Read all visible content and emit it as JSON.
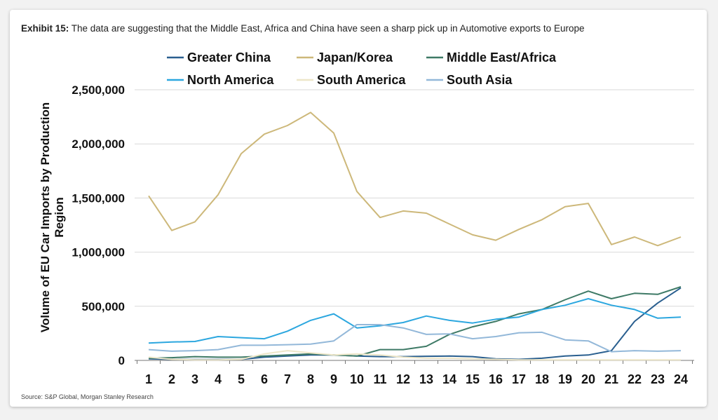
{
  "exhibit": {
    "label": "Exhibit 15:",
    "text": "The data are suggesting that the Middle East, Africa and China have seen a sharp pick up in Automotive exports to Europe"
  },
  "source": "Source: S&P Global, Morgan Stanley Research",
  "chart_data": {
    "type": "line",
    "title": "",
    "xlabel": "",
    "ylabel_lines": [
      "Volume of EU Car Imports by Production",
      "Region"
    ],
    "ylim": [
      0,
      2500000
    ],
    "yticks": [
      0,
      500000,
      1000000,
      1500000,
      2000000,
      2500000
    ],
    "ytick_labels": [
      "0",
      "500,000",
      "1,000,000",
      "1,500,000",
      "2,000,000",
      "2,500,000"
    ],
    "grid": true,
    "legend_position": "top",
    "x": [
      1,
      2,
      3,
      4,
      5,
      6,
      7,
      8,
      9,
      10,
      11,
      12,
      13,
      14,
      15,
      16,
      17,
      18,
      19,
      20,
      21,
      22,
      23,
      24
    ],
    "series": [
      {
        "name": "Greater China",
        "color": "#2a5f8f",
        "values": [
          15000,
          10000,
          8000,
          8000,
          10000,
          30000,
          40000,
          50000,
          50000,
          40000,
          35000,
          35000,
          38000,
          40000,
          35000,
          15000,
          10000,
          20000,
          40000,
          50000,
          90000,
          360000,
          530000,
          670000
        ]
      },
      {
        "name": "Japan/Korea",
        "color": "#cdb87a",
        "values": [
          1520000,
          1200000,
          1280000,
          1530000,
          1910000,
          2090000,
          2170000,
          2290000,
          2100000,
          1560000,
          1320000,
          1380000,
          1360000,
          1260000,
          1160000,
          1110000,
          1210000,
          1300000,
          1420000,
          1450000,
          1070000,
          1140000,
          1060000,
          1140000
        ]
      },
      {
        "name": "Middle East/Africa",
        "color": "#3e7a66",
        "values": [
          20000,
          25000,
          35000,
          30000,
          30000,
          40000,
          50000,
          60000,
          50000,
          40000,
          100000,
          100000,
          130000,
          240000,
          310000,
          360000,
          430000,
          470000,
          560000,
          640000,
          570000,
          620000,
          610000,
          680000
        ]
      },
      {
        "name": "North America",
        "color": "#2ca7df",
        "values": [
          160000,
          170000,
          175000,
          220000,
          210000,
          200000,
          270000,
          370000,
          430000,
          300000,
          320000,
          350000,
          410000,
          370000,
          345000,
          380000,
          400000,
          470000,
          510000,
          570000,
          510000,
          470000,
          390000,
          400000
        ]
      },
      {
        "name": "South America",
        "color": "#ede6c8",
        "values": [
          30000,
          10000,
          5000,
          5000,
          10000,
          60000,
          90000,
          70000,
          50000,
          60000,
          50000,
          30000,
          20000,
          20000,
          15000,
          10000,
          5000,
          5000,
          5000,
          5000,
          5000,
          5000,
          5000,
          5000
        ]
      },
      {
        "name": "South Asia",
        "color": "#93b8d9",
        "values": [
          100000,
          85000,
          90000,
          100000,
          140000,
          140000,
          145000,
          150000,
          180000,
          330000,
          330000,
          300000,
          240000,
          245000,
          200000,
          220000,
          255000,
          260000,
          190000,
          180000,
          80000,
          90000,
          85000,
          90000
        ]
      }
    ]
  }
}
